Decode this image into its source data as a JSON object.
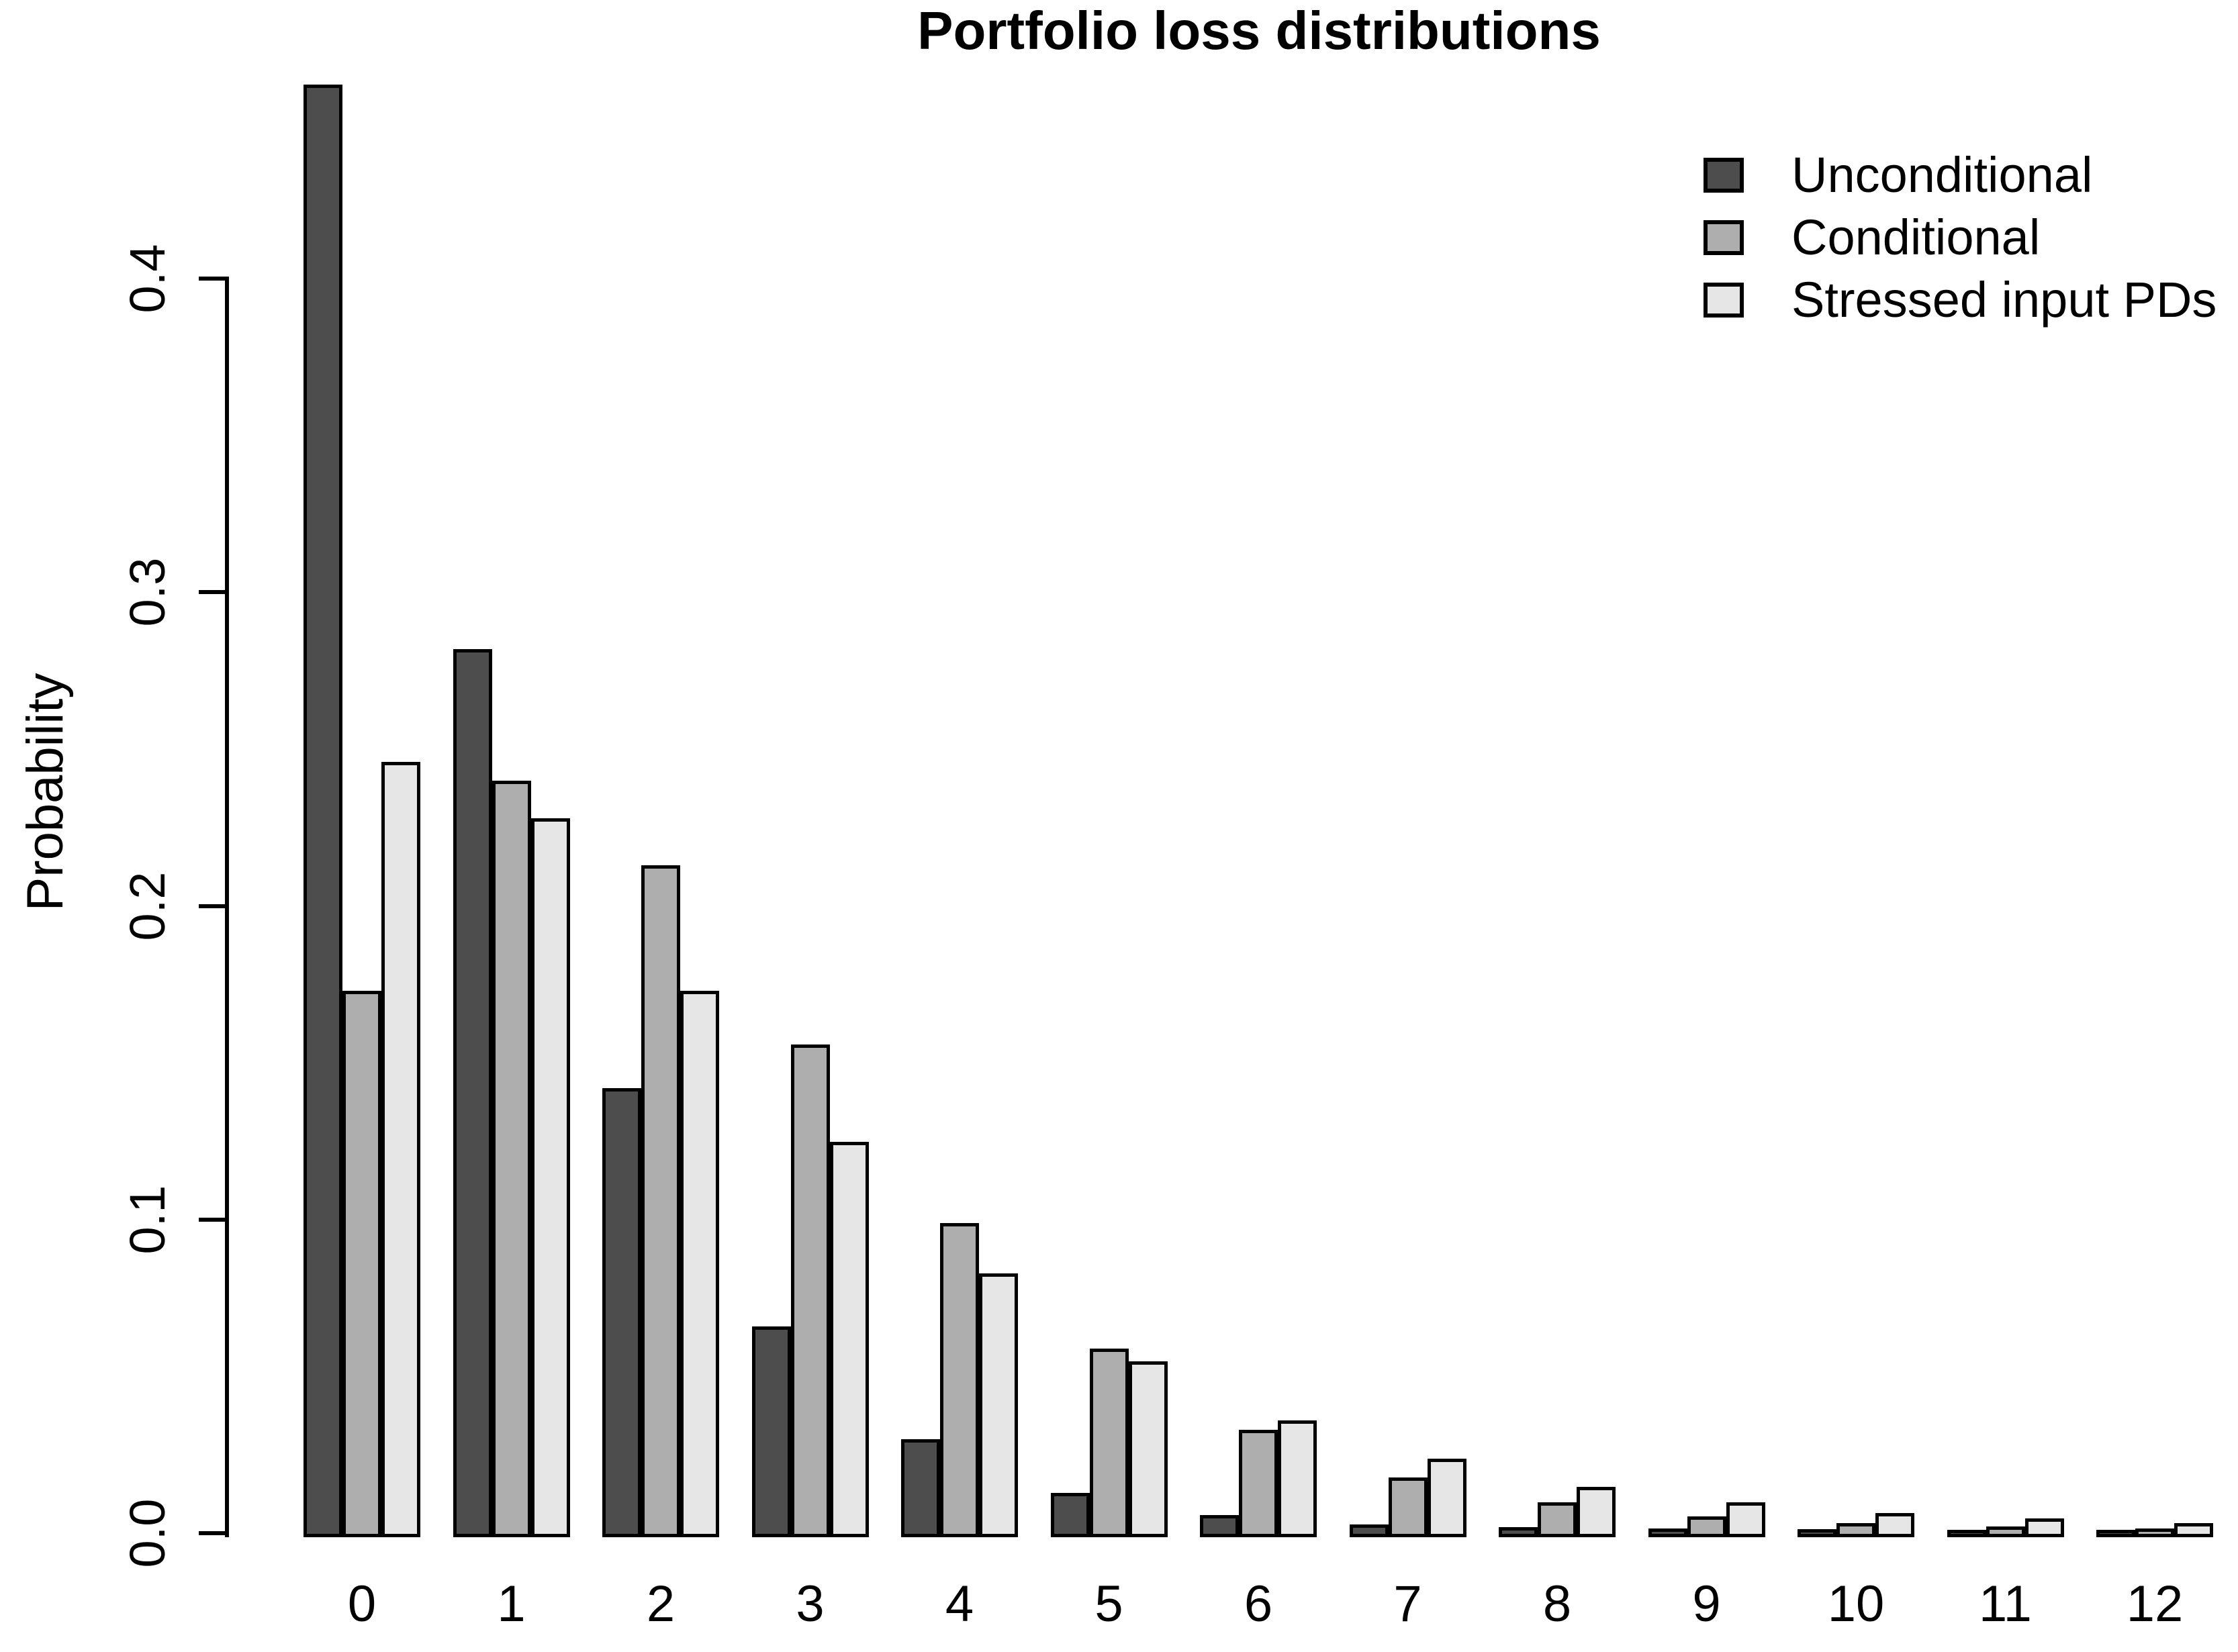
{
  "chart_data": {
    "type": "bar",
    "title": "Portfolio loss distributions",
    "xlabel": "",
    "ylabel": "Probability",
    "categories": [
      "0",
      "1",
      "2",
      "3",
      "4",
      "5",
      "6",
      "7",
      "8",
      "9",
      "10",
      "11",
      "12"
    ],
    "yticks": [
      0,
      0.1,
      0.2,
      0.3,
      0.4
    ],
    "ytick_labels": [
      "0.0",
      "0.1",
      "0.2",
      "0.3",
      "0.4"
    ],
    "ylim": [
      0,
      0.462
    ],
    "grid": false,
    "legend_position": "top-right",
    "bar_border_color": "#000000",
    "series": [
      {
        "name": "Unconditional",
        "color": "#4D4D4D",
        "values": [
          0.461,
          0.281,
          0.141,
          0.065,
          0.029,
          0.012,
          0.005,
          0.002,
          0.001,
          0.0006,
          0.0004,
          0.0002,
          0.0002
        ]
      },
      {
        "name": "Conditional",
        "color": "#AEAEAE",
        "values": [
          0.172,
          0.239,
          0.212,
          0.155,
          0.098,
          0.058,
          0.032,
          0.017,
          0.009,
          0.0044,
          0.0023,
          0.0012,
          0.0007
        ]
      },
      {
        "name": "Stressed input PDs",
        "color": "#E6E6E6",
        "values": [
          0.245,
          0.227,
          0.172,
          0.124,
          0.082,
          0.054,
          0.035,
          0.023,
          0.014,
          0.009,
          0.0056,
          0.0039,
          0.0024
        ]
      }
    ]
  }
}
